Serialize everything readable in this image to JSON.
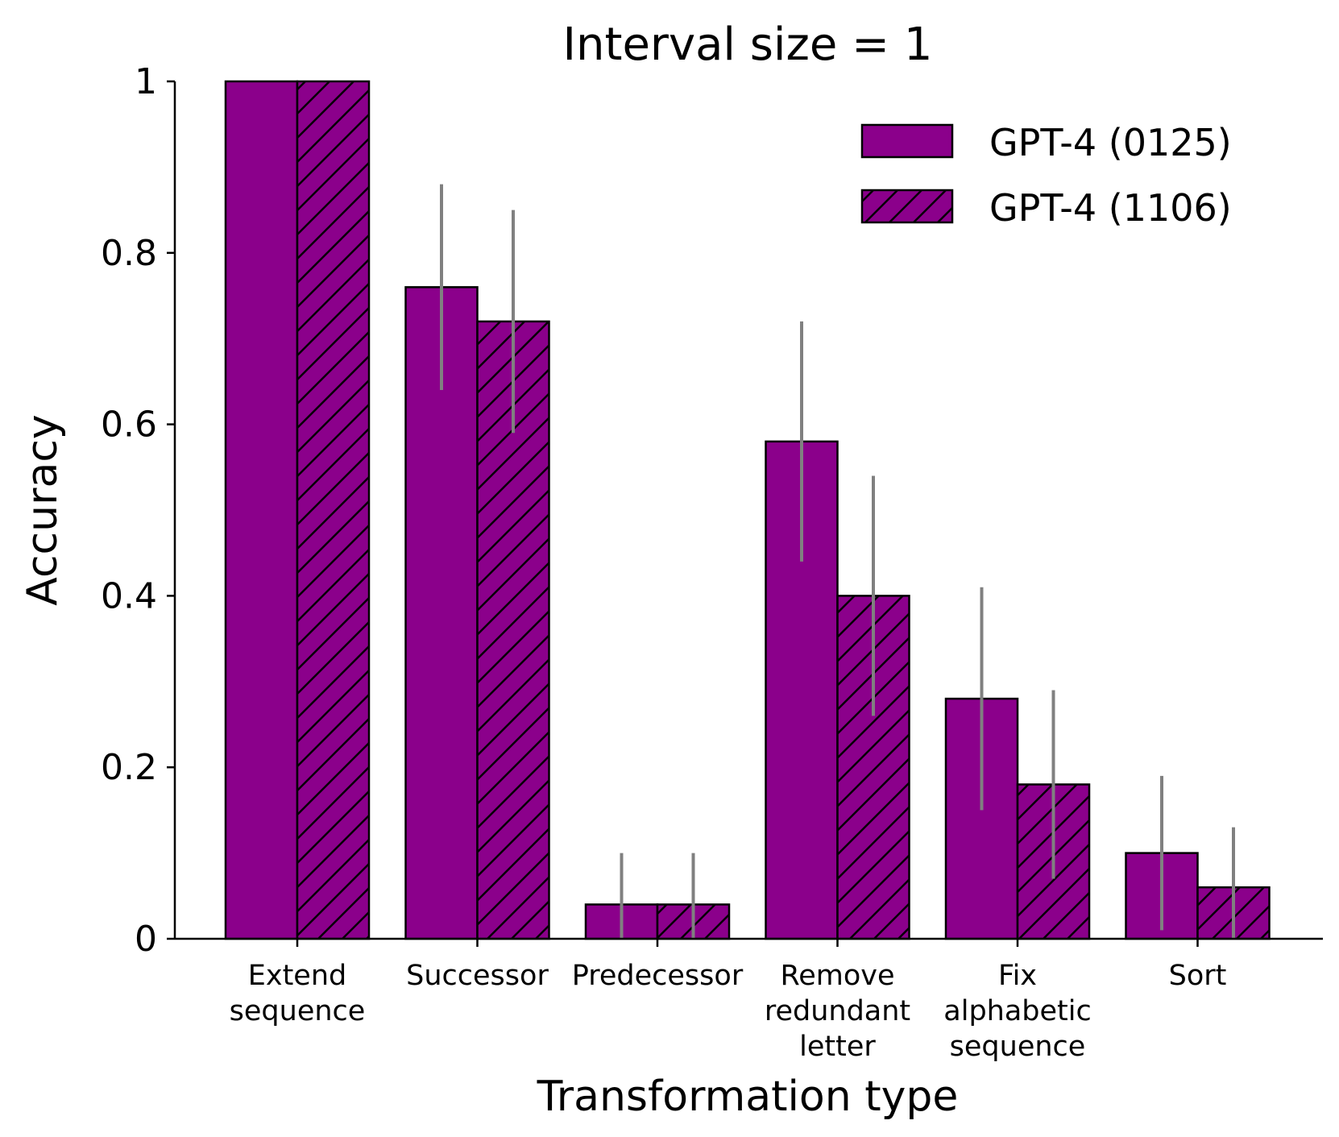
{
  "chart_data": {
    "type": "bar",
    "title": "Interval size = 1",
    "xlabel": "Transformation type",
    "ylabel": "Accuracy",
    "ylim": [
      0,
      1
    ],
    "yticks": [
      {
        "value": 0,
        "label": "0"
      },
      {
        "value": 0.2,
        "label": "0.2"
      },
      {
        "value": 0.4,
        "label": "0.4"
      },
      {
        "value": 0.6,
        "label": "0.6"
      },
      {
        "value": 0.8,
        "label": "0.8"
      },
      {
        "value": 1,
        "label": "1"
      }
    ],
    "categories": [
      [
        "Extend",
        "sequence"
      ],
      [
        "Successor"
      ],
      [
        "Predecessor"
      ],
      [
        "Remove",
        "redundant",
        "letter"
      ],
      [
        "Fix",
        "alphabetic",
        "sequence"
      ],
      [
        "Sort"
      ]
    ],
    "series": [
      {
        "name": "GPT-4 (0125)",
        "hatch": false,
        "values": [
          1.0,
          0.76,
          0.04,
          0.58,
          0.28,
          0.1
        ],
        "error_low": [
          null,
          0.64,
          0.0,
          0.44,
          0.15,
          0.01
        ],
        "error_high": [
          null,
          0.88,
          0.1,
          0.72,
          0.41,
          0.19
        ]
      },
      {
        "name": "GPT-4 (1106)",
        "hatch": true,
        "values": [
          1.0,
          0.72,
          0.04,
          0.4,
          0.18,
          0.06
        ],
        "error_low": [
          null,
          0.59,
          0.0,
          0.26,
          0.07,
          0.0
        ],
        "error_high": [
          null,
          0.85,
          0.1,
          0.54,
          0.29,
          0.13
        ]
      }
    ],
    "legend_position": "top-right",
    "grid": false
  },
  "colors": {
    "bar_fill": "#8b008b",
    "bar_edge": "#000000",
    "error_bar": "#808080",
    "axis": "#000000"
  }
}
